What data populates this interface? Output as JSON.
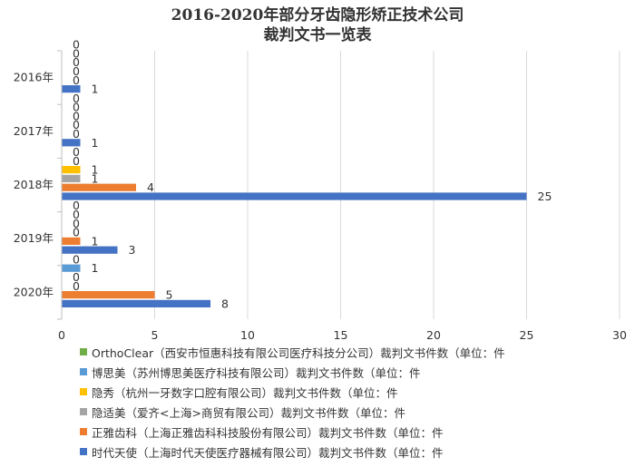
{
  "chart_data": {
    "type": "bar",
    "orientation": "horizontal",
    "title": "2016-2020年部分牙齿隐形矫正技术公司裁判文书一览表",
    "title_lines": [
      "2016-2020年部分牙齿隐形矫正技术公司",
      "裁判文书一览表"
    ],
    "categories": [
      "2016年",
      "2017年",
      "2018年",
      "2019年",
      "2020年"
    ],
    "xlim": [
      0,
      30
    ],
    "x_ticks": [
      "0",
      "5",
      "10",
      "15",
      "20",
      "25",
      "30"
    ],
    "grid": true,
    "legend_position": "bottom",
    "series": [
      {
        "name": "时代天使（上海时代天使医疗器械有限公司）裁判文书件数（单位：件",
        "color": "#4472C4",
        "values": [
          1,
          1,
          25,
          3,
          8
        ]
      },
      {
        "name": "正雅齿科（上海正雅齿科科技股份有限公司）裁判文书件数（单位：件",
        "color": "#ED7D31",
        "values": [
          0,
          0,
          4,
          1,
          5
        ]
      },
      {
        "name": "隐适美（爱齐<上海>商贸有限公司）裁判文书件数（单位：件",
        "color": "#A5A5A5",
        "values": [
          0,
          0,
          1,
          0,
          0
        ]
      },
      {
        "name": "隐秀（杭州一牙数字口腔有限公司）裁判文书件数（单位：件",
        "color": "#FFC000",
        "values": [
          0,
          0,
          1,
          0,
          0
        ]
      },
      {
        "name": "博思美（苏州博思美医疗科技有限公司）裁判文书件数（单位：件",
        "color": "#5B9BD5",
        "values": [
          0,
          0,
          0,
          0,
          1
        ]
      },
      {
        "name": "OrthoClear（西安市恒惠科技有限公司医疗科技分公司）裁判文书件数（单位：件",
        "color": "#70AD47",
        "values": [
          0,
          0,
          0,
          0,
          0
        ]
      }
    ]
  }
}
